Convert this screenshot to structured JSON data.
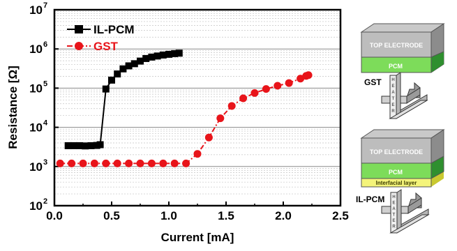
{
  "chart_data": {
    "type": "scatter",
    "xlabel": "Current [mA]",
    "ylabel": "Resistance [Ω]",
    "x_ticks": [
      "0.0",
      "0.5",
      "1.0",
      "1.5",
      "2.0",
      "2.5"
    ],
    "y_ticks": [
      {
        "base": "10",
        "exp": "2"
      },
      {
        "base": "10",
        "exp": "3"
      },
      {
        "base": "10",
        "exp": "4"
      },
      {
        "base": "10",
        "exp": "5"
      },
      {
        "base": "10",
        "exp": "6"
      },
      {
        "base": "10",
        "exp": "7"
      }
    ],
    "xlim": [
      0,
      2.5
    ],
    "ylim": [
      100,
      10000000
    ],
    "y_scale": "log",
    "grid": "horizontal, major and minor",
    "legend_position": "top-left",
    "series": [
      {
        "name": "IL-PCM",
        "color": "#000000",
        "marker": "square",
        "line": "solid",
        "x": [
          0.12,
          0.17,
          0.22,
          0.27,
          0.32,
          0.37,
          0.4,
          0.45,
          0.5,
          0.55,
          0.6,
          0.65,
          0.7,
          0.75,
          0.8,
          0.85,
          0.9,
          0.95,
          1.0,
          1.05,
          1.09
        ],
        "y": [
          3400,
          3400,
          3400,
          3350,
          3400,
          3450,
          3600,
          95000,
          160000,
          230000,
          310000,
          370000,
          420000,
          490000,
          570000,
          620000,
          660000,
          700000,
          730000,
          760000,
          780000
        ]
      },
      {
        "name": "GST",
        "color": "#e8141a",
        "marker": "circle",
        "line": "dashdot",
        "x": [
          0.05,
          0.15,
          0.25,
          0.35,
          0.45,
          0.55,
          0.65,
          0.75,
          0.85,
          0.95,
          1.05,
          1.15,
          1.25,
          1.35,
          1.45,
          1.55,
          1.65,
          1.75,
          1.85,
          1.95,
          2.05,
          2.15,
          2.2,
          2.22
        ],
        "y": [
          1200,
          1200,
          1200,
          1200,
          1200,
          1200,
          1200,
          1200,
          1200,
          1200,
          1200,
          1200,
          2100,
          5500,
          17000,
          35000,
          55000,
          75000,
          95000,
          115000,
          135000,
          175000,
          205000,
          215000
        ]
      }
    ]
  },
  "diagrams": {
    "gst": {
      "top_electrode": "TOP ELECTRODE",
      "pcm": "PCM",
      "label": "GST",
      "heater": [
        "H",
        "E",
        "A",
        "T",
        "E",
        "R"
      ]
    },
    "ilpcm": {
      "top_electrode": "TOP ELECTRODE",
      "pcm": "PCM",
      "interfacial": "Interfacial layer",
      "label": "IL-PCM",
      "heater": [
        "H",
        "E",
        "A",
        "T",
        "E",
        "R"
      ]
    }
  }
}
